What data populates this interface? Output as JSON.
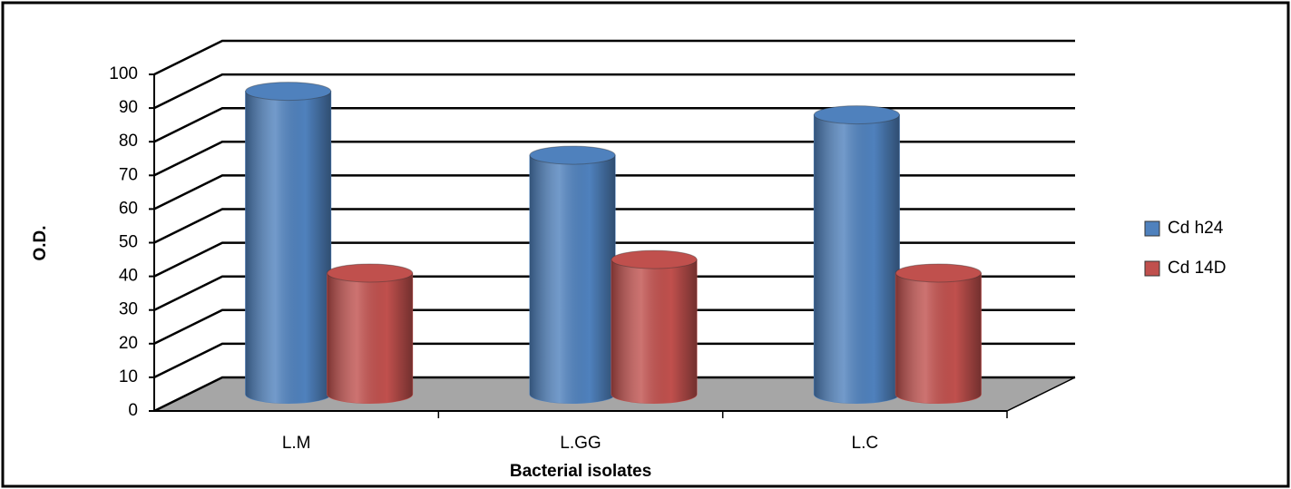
{
  "chart_data": {
    "type": "bar3d",
    "categories": [
      "L.M",
      "L.GG",
      "L.C"
    ],
    "series": [
      {
        "name": "Cd h24",
        "color": "#4f81bd",
        "values": [
          90,
          71,
          83
        ]
      },
      {
        "name": "Cd 14D",
        "color": "#c0504d",
        "values": [
          36,
          40,
          36
        ]
      }
    ],
    "x_label": "Bacterial isolates",
    "y_label": "O.D.",
    "ylim": [
      0,
      100
    ],
    "yticks": [
      0,
      10,
      20,
      30,
      40,
      50,
      60,
      70,
      80,
      90,
      100
    ],
    "grid": true,
    "legend": "right"
  }
}
